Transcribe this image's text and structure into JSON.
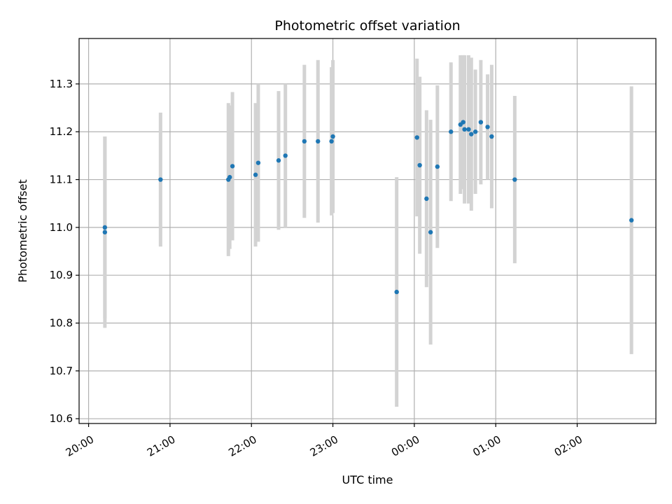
{
  "chart_data": {
    "type": "scatter",
    "title": "Photometric offset variation",
    "xlabel": "UTC time",
    "ylabel": "Photometric offset",
    "x_axis_kind": "time",
    "xlim": [
      "19:53",
      "02:58"
    ],
    "ylim": [
      10.59,
      11.395
    ],
    "x_ticks": [
      "20:00",
      "21:00",
      "22:00",
      "23:00",
      "00:00",
      "01:00",
      "02:00"
    ],
    "y_ticks": [
      "10.6",
      "10.7",
      "10.8",
      "10.9",
      "11.0",
      "11.1",
      "11.2",
      "11.3"
    ],
    "grid": true,
    "point_color": "#1f77b4",
    "errorbar_color": "#d3d3d3",
    "points": [
      {
        "x": "20:12",
        "y": 10.99,
        "err": 0.2
      },
      {
        "x": "20:12",
        "y": 11.0,
        "err": 0.19
      },
      {
        "x": "20:53",
        "y": 11.1,
        "err": 0.14
      },
      {
        "x": "21:43",
        "y": 11.1,
        "err": 0.16
      },
      {
        "x": "21:44",
        "y": 11.105,
        "err": 0.15
      },
      {
        "x": "21:46",
        "y": 11.128,
        "err": 0.155
      },
      {
        "x": "22:03",
        "y": 11.11,
        "err": 0.15
      },
      {
        "x": "22:05",
        "y": 11.135,
        "err": 0.165
      },
      {
        "x": "22:20",
        "y": 11.14,
        "err": 0.145
      },
      {
        "x": "22:25",
        "y": 11.15,
        "err": 0.15
      },
      {
        "x": "22:39",
        "y": 11.18,
        "err": 0.16
      },
      {
        "x": "22:49",
        "y": 11.18,
        "err": 0.17
      },
      {
        "x": "22:59",
        "y": 11.18,
        "err": 0.155
      },
      {
        "x": "23:00",
        "y": 11.19,
        "err": 0.16
      },
      {
        "x": "23:47",
        "y": 10.865,
        "err": 0.24
      },
      {
        "x": "00:02",
        "y": 11.188,
        "err": 0.165
      },
      {
        "x": "00:04",
        "y": 11.13,
        "err": 0.185
      },
      {
        "x": "00:09",
        "y": 11.06,
        "err": 0.185
      },
      {
        "x": "00:12",
        "y": 10.99,
        "err": 0.235
      },
      {
        "x": "00:17",
        "y": 11.127,
        "err": 0.17
      },
      {
        "x": "00:27",
        "y": 11.2,
        "err": 0.145
      },
      {
        "x": "00:34",
        "y": 11.215,
        "err": 0.145
      },
      {
        "x": "00:36",
        "y": 11.22,
        "err": 0.14
      },
      {
        "x": "00:37",
        "y": 11.205,
        "err": 0.155
      },
      {
        "x": "00:40",
        "y": 11.205,
        "err": 0.155
      },
      {
        "x": "00:42",
        "y": 11.195,
        "err": 0.16
      },
      {
        "x": "00:45",
        "y": 11.2,
        "err": 0.13
      },
      {
        "x": "00:49",
        "y": 11.22,
        "err": 0.13
      },
      {
        "x": "00:54",
        "y": 11.21,
        "err": 0.11
      },
      {
        "x": "00:57",
        "y": 11.19,
        "err": 0.15
      },
      {
        "x": "01:14",
        "y": 11.1,
        "err": 0.175
      },
      {
        "x": "02:40",
        "y": 11.015,
        "err": 0.28
      }
    ]
  }
}
